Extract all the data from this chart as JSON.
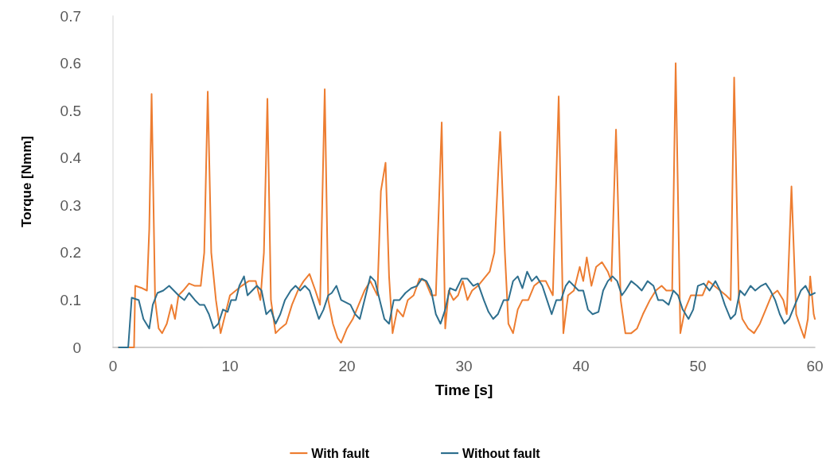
{
  "chart_data": {
    "type": "line",
    "xlabel": "Time [s]",
    "ylabel": "Torque [Nmm]",
    "xlim": [
      0,
      60
    ],
    "xticks": [
      0,
      10,
      20,
      30,
      40,
      50,
      60
    ],
    "ylim": [
      0,
      0.7
    ],
    "yticks": [
      0,
      0.1,
      0.2,
      0.3,
      0.4,
      0.5,
      0.6,
      0.7
    ],
    "grid": false,
    "legend": "bottom",
    "marker": "none",
    "line_style": "solid",
    "series": [
      {
        "name": "With fault",
        "color": "#ed7d31",
        "x": [
          0.5,
          1.5,
          1.8,
          1.9,
          2.5,
          2.9,
          3.1,
          3.3,
          3.6,
          3.9,
          4.2,
          4.6,
          5.0,
          5.3,
          5.6,
          6.0,
          6.5,
          7.0,
          7.5,
          7.8,
          8.1,
          8.4,
          8.8,
          9.2,
          9.6,
          10.0,
          10.5,
          11,
          11.6,
          12.2,
          12.6,
          12.9,
          13.2,
          13.5,
          13.9,
          14.3,
          14.8,
          15.3,
          15.8,
          16.3,
          16.8,
          17.3,
          17.7,
          18.1,
          18.4,
          18.8,
          19.2,
          19.5,
          20,
          20.5,
          21,
          21.5,
          22,
          22.6,
          22.9,
          23.3,
          23.6,
          23.9,
          24.3,
          24.8,
          25.2,
          25.7,
          26.2,
          26.7,
          27.2,
          27.6,
          28.1,
          28.4,
          28.7,
          29.1,
          29.5,
          29.9,
          30.3,
          30.7,
          31.2,
          31.7,
          32.2,
          32.6,
          33.1,
          33.5,
          33.8,
          34.2,
          34.6,
          35.0,
          35.5,
          36,
          36.5,
          37,
          37.6,
          38.1,
          38.5,
          38.9,
          39.4,
          39.9,
          40.2,
          40.5,
          40.9,
          41.3,
          41.8,
          42.3,
          42.6,
          43.0,
          43.4,
          43.8,
          44.3,
          44.8,
          45.3,
          45.9,
          46.4,
          46.9,
          47.3,
          47.8,
          48.1,
          48.5,
          48.9,
          49.4,
          49.9,
          50.4,
          50.9,
          51.4,
          51.9,
          52.4,
          52.8,
          53.1,
          53.5,
          53.8,
          54.3,
          54.8,
          55.3,
          55.8,
          56.3,
          56.8,
          57.3,
          57.6,
          58.0,
          58.4,
          58.8,
          59.1,
          59.4,
          59.6,
          59.9,
          60
        ],
        "values": [
          0,
          0,
          0,
          0.13,
          0.125,
          0.12,
          0.25,
          0.535,
          0.1,
          0.04,
          0.03,
          0.05,
          0.09,
          0.06,
          0.11,
          0.12,
          0.135,
          0.13,
          0.13,
          0.2,
          0.54,
          0.2,
          0.1,
          0.03,
          0.07,
          0.11,
          0.12,
          0.13,
          0.14,
          0.14,
          0.1,
          0.2,
          0.525,
          0.1,
          0.03,
          0.04,
          0.05,
          0.09,
          0.12,
          0.14,
          0.155,
          0.12,
          0.09,
          0.545,
          0.1,
          0.05,
          0.02,
          0.01,
          0.04,
          0.06,
          0.09,
          0.12,
          0.14,
          0.11,
          0.33,
          0.39,
          0.15,
          0.03,
          0.08,
          0.065,
          0.1,
          0.11,
          0.145,
          0.14,
          0.11,
          0.11,
          0.475,
          0.04,
          0.12,
          0.1,
          0.11,
          0.14,
          0.1,
          0.12,
          0.13,
          0.145,
          0.16,
          0.2,
          0.455,
          0.2,
          0.05,
          0.03,
          0.08,
          0.1,
          0.1,
          0.13,
          0.14,
          0.14,
          0.11,
          0.53,
          0.03,
          0.11,
          0.12,
          0.17,
          0.14,
          0.19,
          0.13,
          0.17,
          0.18,
          0.16,
          0.14,
          0.46,
          0.1,
          0.03,
          0.03,
          0.04,
          0.07,
          0.1,
          0.12,
          0.13,
          0.12,
          0.12,
          0.6,
          0.03,
          0.08,
          0.11,
          0.11,
          0.11,
          0.14,
          0.13,
          0.12,
          0.11,
          0.1,
          0.57,
          0.1,
          0.06,
          0.04,
          0.03,
          0.05,
          0.08,
          0.11,
          0.12,
          0.1,
          0.07,
          0.34,
          0.07,
          0.04,
          0.02,
          0.06,
          0.15,
          0.07,
          0.06
        ]
      },
      {
        "name": "Without fault",
        "color": "#2e6f8e",
        "x": [
          0.5,
          1.3,
          1.6,
          2.2,
          2.6,
          3.1,
          3.4,
          3.8,
          4.3,
          4.8,
          5.2,
          5.6,
          6.1,
          6.5,
          7,
          7.4,
          7.8,
          8.2,
          8.6,
          9,
          9.4,
          9.8,
          10.1,
          10.5,
          10.8,
          11.2,
          11.5,
          11.9,
          12.3,
          12.7,
          13.1,
          13.5,
          13.9,
          14.3,
          14.7,
          15.2,
          15.6,
          16.0,
          16.4,
          16.8,
          17.2,
          17.6,
          18,
          18.4,
          18.7,
          19.1,
          19.5,
          19.9,
          20.3,
          20.7,
          21.1,
          21.5,
          22.0,
          22.4,
          22.8,
          23.2,
          23.6,
          24,
          24.5,
          25,
          25.5,
          26,
          26.4,
          26.8,
          27.2,
          27.6,
          28.0,
          28.4,
          28.8,
          29.3,
          29.8,
          30.3,
          30.8,
          31.2,
          31.7,
          32.1,
          32.5,
          32.9,
          33.4,
          33.8,
          34.2,
          34.6,
          35,
          35.4,
          35.8,
          36.2,
          36.7,
          37.1,
          37.5,
          37.9,
          38.3,
          38.7,
          39,
          39.4,
          39.8,
          40.2,
          40.6,
          41,
          41.5,
          41.9,
          42.3,
          42.7,
          43.1,
          43.5,
          43.8,
          44.3,
          44.8,
          45.2,
          45.7,
          46.2,
          46.6,
          47.0,
          47.5,
          47.9,
          48.3,
          48.7,
          49.2,
          49.6,
          50,
          50.5,
          51,
          51.5,
          51.9,
          52.3,
          52.8,
          53.2,
          53.6,
          54,
          54.5,
          54.9,
          55.4,
          55.8,
          56.2,
          56.6,
          57,
          57.4,
          57.8,
          58.3,
          58.8,
          59.2,
          59.6,
          60
        ],
        "values": [
          0,
          0,
          0.105,
          0.1,
          0.06,
          0.04,
          0.09,
          0.115,
          0.12,
          0.13,
          0.12,
          0.11,
          0.1,
          0.115,
          0.1,
          0.09,
          0.09,
          0.07,
          0.04,
          0.05,
          0.08,
          0.075,
          0.1,
          0.1,
          0.13,
          0.15,
          0.11,
          0.12,
          0.13,
          0.12,
          0.07,
          0.08,
          0.05,
          0.07,
          0.1,
          0.12,
          0.13,
          0.12,
          0.13,
          0.12,
          0.09,
          0.06,
          0.08,
          0.11,
          0.115,
          0.13,
          0.1,
          0.095,
          0.09,
          0.07,
          0.06,
          0.1,
          0.15,
          0.14,
          0.1,
          0.06,
          0.05,
          0.1,
          0.1,
          0.115,
          0.125,
          0.13,
          0.145,
          0.14,
          0.12,
          0.07,
          0.05,
          0.08,
          0.125,
          0.12,
          0.145,
          0.145,
          0.13,
          0.135,
          0.1,
          0.075,
          0.06,
          0.07,
          0.1,
          0.1,
          0.14,
          0.15,
          0.125,
          0.16,
          0.14,
          0.15,
          0.13,
          0.1,
          0.07,
          0.1,
          0.1,
          0.13,
          0.14,
          0.13,
          0.12,
          0.12,
          0.08,
          0.07,
          0.075,
          0.12,
          0.14,
          0.15,
          0.14,
          0.11,
          0.12,
          0.14,
          0.13,
          0.12,
          0.14,
          0.13,
          0.1,
          0.1,
          0.09,
          0.12,
          0.11,
          0.08,
          0.06,
          0.08,
          0.13,
          0.135,
          0.12,
          0.14,
          0.12,
          0.09,
          0.06,
          0.07,
          0.12,
          0.11,
          0.13,
          0.12,
          0.13,
          0.135,
          0.12,
          0.1,
          0.07,
          0.05,
          0.06,
          0.09,
          0.12,
          0.13,
          0.11,
          0.115
        ]
      }
    ]
  }
}
